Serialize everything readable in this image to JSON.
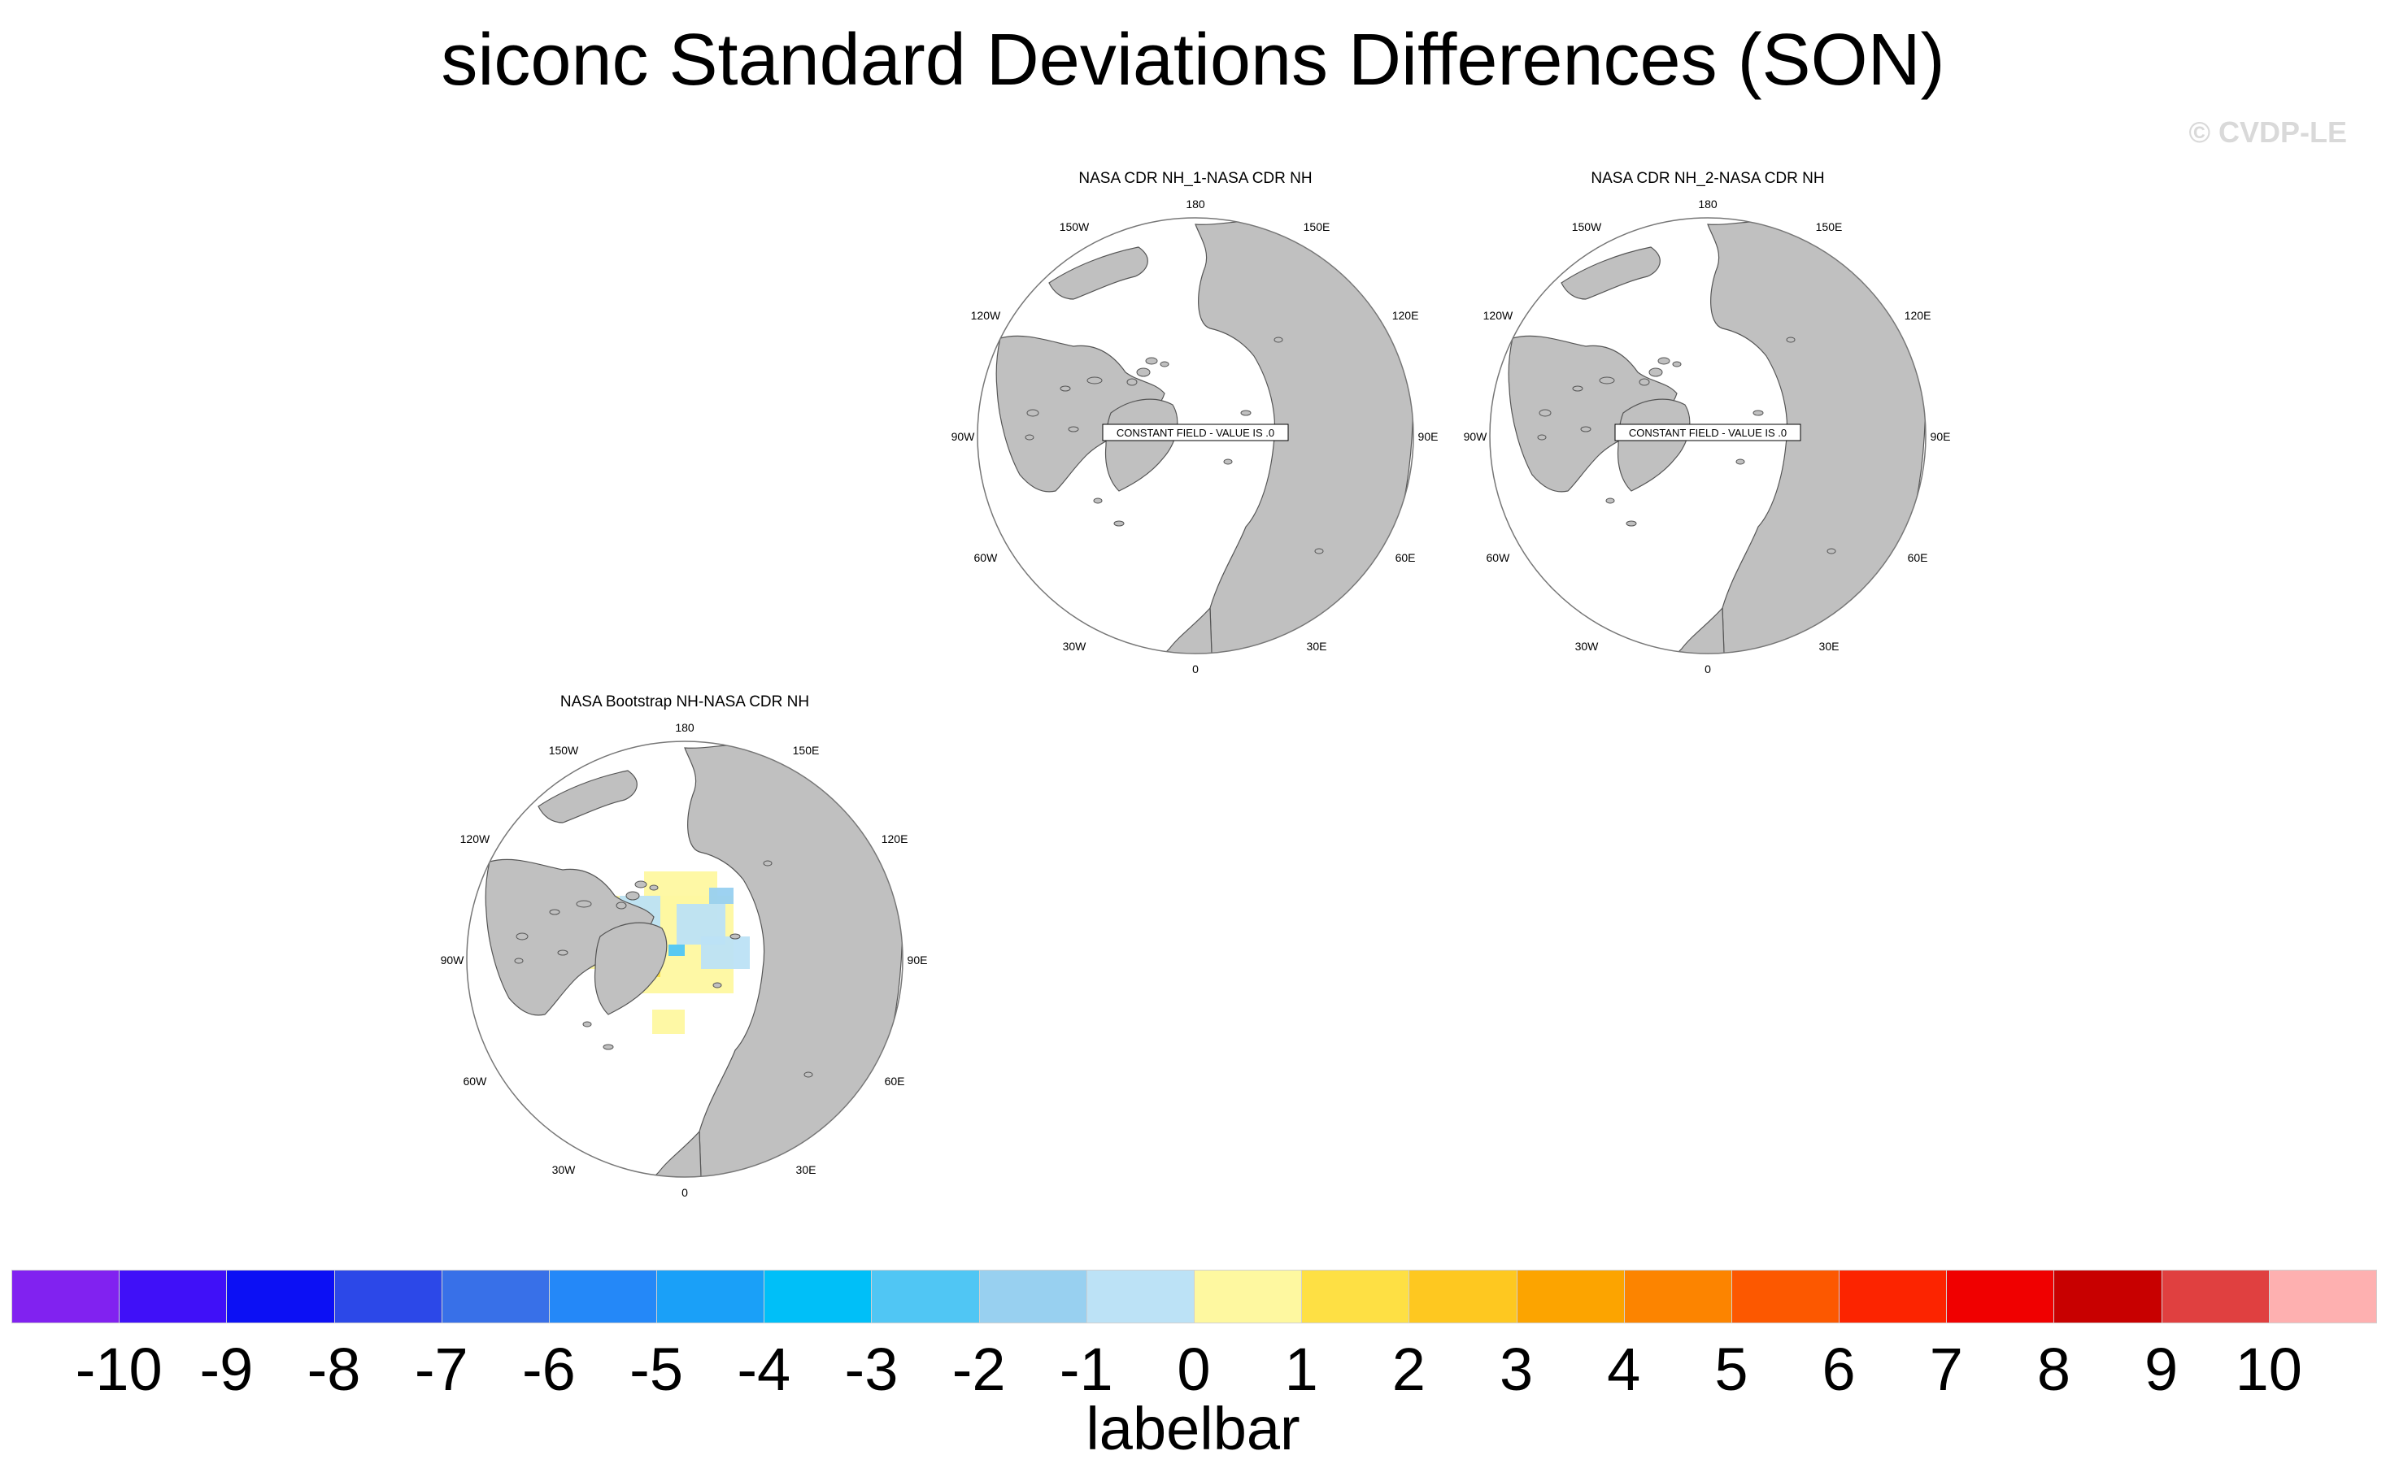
{
  "title": "siconc Standard Deviations Differences (SON)",
  "credit": "© CVDP-LE",
  "colors": {
    "land": "#c0c0c0",
    "ocean": "#ffffff",
    "coast": "#555555"
  },
  "panels": [
    {
      "id": "cdr1",
      "title": "NASA CDR NH_1-NASA CDR NH",
      "constant_label": "CONSTANT FIELD - VALUE IS .0",
      "has_data": false
    },
    {
      "id": "cdr2",
      "title": "NASA CDR NH_2-NASA CDR NH",
      "constant_label": "CONSTANT FIELD - VALUE IS .0",
      "has_data": false
    },
    {
      "id": "bootstrap",
      "title": "NASA Bootstrap NH-NASA CDR NH",
      "constant_label": "",
      "has_data": true
    }
  ],
  "lon_labels": [
    "180",
    "150E",
    "120E",
    "90E",
    "60E",
    "30E",
    "0",
    "30W",
    "60W",
    "90W",
    "120W",
    "150W"
  ],
  "labelbar": {
    "title": "labelbar",
    "ticks": [
      "-10",
      "-9",
      "-8",
      "-7",
      "-6",
      "-5",
      "-4",
      "-3",
      "-2",
      "-1",
      "0",
      "1",
      "2",
      "3",
      "4",
      "5",
      "6",
      "7",
      "8",
      "9",
      "10"
    ],
    "colors": [
      "#8122f0",
      "#4010f8",
      "#0c10f4",
      "#2c48e8",
      "#3870e8",
      "#2488f8",
      "#1aa0f8",
      "#00bff8",
      "#50c6f4",
      "#98d0f0",
      "#bce2f6",
      "#fef8a0",
      "#fee044",
      "#fec820",
      "#fca400",
      "#fc8400",
      "#fc5800",
      "#fc2400",
      "#f00000",
      "#c80000",
      "#e04040",
      "#feb0b0"
    ]
  }
}
